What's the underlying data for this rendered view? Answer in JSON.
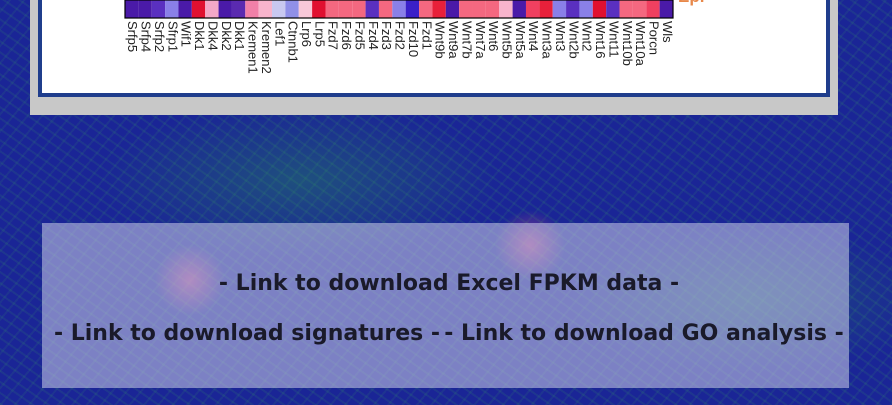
{
  "heatmap": {
    "row_label": "Epi",
    "genes": [
      "Srfp5",
      "Srfp4",
      "Srfp2",
      "Sfrp1",
      "Wif1",
      "Dkk1",
      "Dkk4",
      "Dkk2",
      "Dkk1",
      "Kremen1",
      "Kremen2",
      "Lef1",
      "Ctnnb1",
      "Lrp6",
      "Lrp5",
      "Fzd7",
      "Fzd6",
      "Fzd5",
      "Fzd4",
      "Fzd3",
      "Fzd2",
      "Fzd10",
      "Fzd1",
      "Wnt9b",
      "Wnt9a",
      "Wnt7b",
      "Wnt7a",
      "Wnt6",
      "Wnt5b",
      "Wnt5a",
      "Wnt4",
      "Wnt3a",
      "Wnt3",
      "Wnt2b",
      "Wnt2",
      "Wnt16",
      "Wnt11",
      "Wnt10b",
      "Wnt10a",
      "Porcn",
      "Wls"
    ],
    "colors": [
      "#4a1aa8",
      "#4a1aa8",
      "#5a30c0",
      "#8a80e8",
      "#4a1aa8",
      "#e01030",
      "#f4a8c8",
      "#4a1aa8",
      "#5a2ab0",
      "#f080a8",
      "#f8b4cc",
      "#c8c8f0",
      "#9090e8",
      "#f8c8d8",
      "#e01030",
      "#f46880",
      "#f46880",
      "#f46880",
      "#5a30c0",
      "#f46880",
      "#8a80e8",
      "#3a20c8",
      "#f46880",
      "#e8203a",
      "#4a1aa8",
      "#f46880",
      "#f46880",
      "#f46880",
      "#f8b4cc",
      "#4a1aa8",
      "#f04060",
      "#e8203a",
      "#8a80e8",
      "#5a30c0",
      "#8a80e8",
      "#e01030",
      "#5a30c0",
      "#f46880",
      "#f46880",
      "#f04060",
      "#4a1aa8"
    ]
  },
  "links": [
    "- Link to download Excel FPKM data -",
    "- Link to download signatures -",
    "- Link to download GO analysis -"
  ]
}
